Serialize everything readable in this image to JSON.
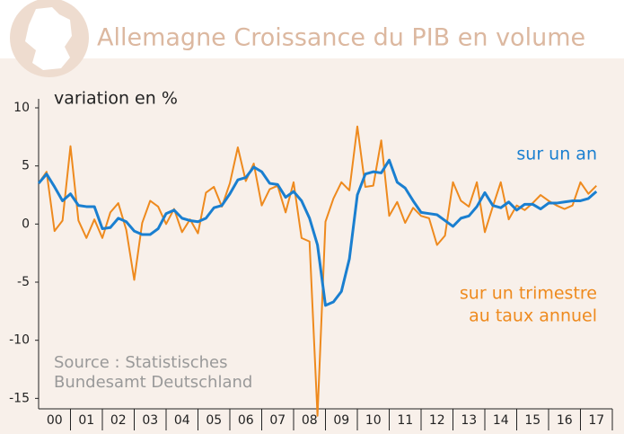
{
  "chart_data": {
    "type": "line",
    "title": "Allemagne Croissance du PIB en volume",
    "y_label": "variation en %",
    "source": [
      "Source : Statistisches",
      "Bundesamt Deutschland"
    ],
    "x": [
      2000,
      2000.25,
      2000.5,
      2000.75,
      2001,
      2001.25,
      2001.5,
      2001.75,
      2002,
      2002.25,
      2002.5,
      2002.75,
      2003,
      2003.25,
      2003.5,
      2003.75,
      2004,
      2004.25,
      2004.5,
      2004.75,
      2005,
      2005.25,
      2005.5,
      2005.75,
      2006,
      2006.25,
      2006.5,
      2006.75,
      2007,
      2007.25,
      2007.5,
      2007.75,
      2008,
      2008.25,
      2008.5,
      2008.75,
      2009,
      2009.25,
      2009.5,
      2009.75,
      2010,
      2010.25,
      2010.5,
      2010.75,
      2011,
      2011.25,
      2011.5,
      2011.75,
      2012,
      2012.25,
      2012.5,
      2012.75,
      2013,
      2013.25,
      2013.5,
      2013.75,
      2014,
      2014.25,
      2014.5,
      2014.75,
      2015,
      2015.25,
      2015.5,
      2015.75,
      2016,
      2016.25,
      2016.5,
      2016.75,
      2017,
      2017.25,
      2017.5
    ],
    "series": [
      {
        "name": [
          "sur un trimestre",
          "au taux annuel"
        ],
        "color": "#ee8a1e",
        "values": [
          3.5,
          4.5,
          -0.6,
          0.3,
          6.7,
          0.3,
          -1.2,
          0.4,
          -1.2,
          1.0,
          1.8,
          -0.5,
          -4.8,
          0.1,
          2.0,
          1.5,
          0.0,
          1.3,
          -0.7,
          0.4,
          -0.8,
          2.7,
          3.2,
          1.5,
          3.5,
          6.6,
          3.7,
          5.2,
          1.6,
          3.0,
          3.3,
          1.0,
          3.6,
          -1.2,
          -1.5,
          -16.5,
          0.2,
          2.2,
          3.6,
          2.9,
          8.4,
          3.2,
          3.3,
          7.2,
          0.7,
          1.9,
          0.1,
          1.4,
          0.7,
          0.5,
          -1.8,
          -1.0,
          3.6,
          2.0,
          1.5,
          3.6,
          -0.7,
          1.5,
          3.6,
          0.4,
          1.6,
          1.2,
          1.8,
          2.5,
          2.0,
          1.6,
          1.3,
          1.6,
          3.6,
          2.6,
          3.3
        ]
      },
      {
        "name": [
          "sur un an"
        ],
        "color": "#1a7fd0",
        "values": [
          3.5,
          4.3,
          3.2,
          2.0,
          2.6,
          1.6,
          1.5,
          1.5,
          -0.4,
          -0.3,
          0.5,
          0.2,
          -0.6,
          -0.9,
          -0.9,
          -0.4,
          0.9,
          1.2,
          0.5,
          0.3,
          0.2,
          0.5,
          1.4,
          1.6,
          2.6,
          3.8,
          4.0,
          4.9,
          4.5,
          3.5,
          3.4,
          2.3,
          2.8,
          2.0,
          0.5,
          -1.8,
          -7.0,
          -6.7,
          -5.8,
          -3.0,
          2.5,
          4.3,
          4.5,
          4.4,
          5.5,
          3.6,
          3.1,
          2.0,
          1.0,
          0.9,
          0.8,
          0.3,
          -0.2,
          0.5,
          0.7,
          1.5,
          2.7,
          1.6,
          1.4,
          1.9,
          1.2,
          1.7,
          1.7,
          1.3,
          1.8,
          1.8,
          1.9,
          2.0,
          2.0,
          2.2,
          2.8
        ]
      }
    ],
    "xlim": [
      2000,
      2018
    ],
    "xticks": [
      {
        "value": 2000.5,
        "label": "00"
      },
      {
        "value": 2001.5,
        "label": "01"
      },
      {
        "value": 2002.5,
        "label": "02"
      },
      {
        "value": 2003.5,
        "label": "03"
      },
      {
        "value": 2004.5,
        "label": "04"
      },
      {
        "value": 2005.5,
        "label": "05"
      },
      {
        "value": 2006.5,
        "label": "06"
      },
      {
        "value": 2007.5,
        "label": "07"
      },
      {
        "value": 2008.5,
        "label": "08"
      },
      {
        "value": 2009.5,
        "label": "09"
      },
      {
        "value": 2010.5,
        "label": "10"
      },
      {
        "value": 2011.5,
        "label": "11"
      },
      {
        "value": 2012.5,
        "label": "12"
      },
      {
        "value": 2013.5,
        "label": "13"
      },
      {
        "value": 2014.5,
        "label": "14"
      },
      {
        "value": 2015.5,
        "label": "15"
      },
      {
        "value": 2016.5,
        "label": "16"
      },
      {
        "value": 2017.5,
        "label": "17"
      }
    ],
    "ylim": [
      -15.9,
      10
    ],
    "yticks": [
      10,
      5,
      0,
      -5,
      -10,
      -15
    ]
  }
}
